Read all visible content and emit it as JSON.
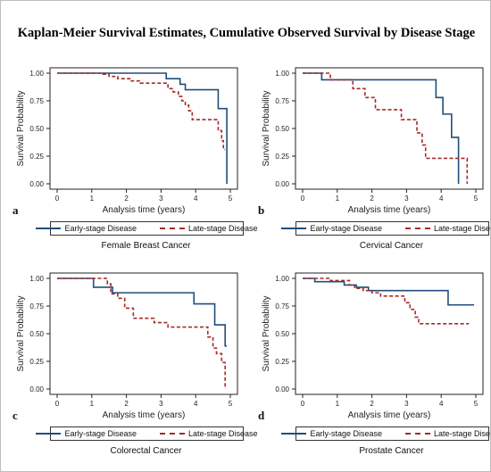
{
  "title": "Kaplan-Meier Survival Estimates,  Cumulative Observed Survival by Disease Stage",
  "colors": {
    "early": "#1f4e79",
    "late": "#a52a2a",
    "frame": "#222222"
  },
  "chart_data": [
    {
      "type": "line",
      "panel_letter": "a",
      "caption": "Female Breast Cancer",
      "xlabel": "Analysis time (years)",
      "ylabel": "Survival Probability",
      "xlim": [
        0,
        5
      ],
      "ylim": [
        0,
        1
      ],
      "xticks": [
        "0",
        "1",
        "2",
        "3",
        "4",
        "5"
      ],
      "yticks": [
        "0.00",
        "0.25",
        "0.50",
        "0.75",
        "1.00"
      ],
      "series": [
        {
          "name": "Early-stage Disease",
          "style": "solid",
          "x": [
            0,
            3.15,
            3.55,
            3.7,
            4.65,
            4.9
          ],
          "y": [
            1.0,
            0.95,
            0.9,
            0.85,
            0.68,
            0.0
          ],
          "end": 4.9
        },
        {
          "name": "Late-stage Disease",
          "style": "dashed",
          "x": [
            0,
            1.3,
            1.5,
            1.75,
            2.1,
            2.4,
            3.2,
            3.35,
            3.5,
            3.6,
            3.7,
            3.8,
            3.9,
            4.65,
            4.75,
            4.8
          ],
          "y": [
            1.0,
            0.99,
            0.97,
            0.95,
            0.93,
            0.91,
            0.86,
            0.83,
            0.79,
            0.75,
            0.71,
            0.66,
            0.58,
            0.48,
            0.39,
            0.31
          ],
          "end": 4.85
        }
      ]
    },
    {
      "type": "line",
      "panel_letter": "b",
      "caption": "Cervical Cancer",
      "xlabel": "Analysis time (years)",
      "ylabel": "Survival Probability",
      "xlim": [
        0,
        5
      ],
      "ylim": [
        0,
        1
      ],
      "xticks": [
        "0",
        "1",
        "2",
        "3",
        "4",
        "5"
      ],
      "yticks": [
        "0.00",
        "0.25",
        "0.50",
        "0.75",
        "1.00"
      ],
      "series": [
        {
          "name": "Early-stage Disease",
          "style": "solid",
          "x": [
            0,
            0.55,
            3.85,
            4.05,
            4.3,
            4.5
          ],
          "y": [
            1.0,
            0.94,
            0.78,
            0.63,
            0.42,
            0.0
          ],
          "end": 4.5
        },
        {
          "name": "Late-stage Disease",
          "style": "dashed",
          "x": [
            0,
            0.8,
            1.45,
            1.8,
            2.1,
            2.5,
            2.85,
            3.3,
            3.45,
            3.55,
            4.75
          ],
          "y": [
            1.0,
            0.94,
            0.86,
            0.78,
            0.67,
            0.67,
            0.58,
            0.46,
            0.35,
            0.23,
            0.0
          ],
          "end": 4.75
        }
      ]
    },
    {
      "type": "line",
      "panel_letter": "c",
      "caption": "Colorectal Cancer",
      "xlabel": "Analysis time (years)",
      "ylabel": "Survival Probability",
      "xlim": [
        0,
        5
      ],
      "ylim": [
        0,
        1
      ],
      "xticks": [
        "0",
        "1",
        "2",
        "3",
        "4",
        "5"
      ],
      "yticks": [
        "0.00",
        "0.25",
        "0.50",
        "0.75",
        "1.00"
      ],
      "series": [
        {
          "name": "Early-stage Disease",
          "style": "solid",
          "x": [
            0,
            1.05,
            1.6,
            3.95,
            4.55,
            4.85
          ],
          "y": [
            1.0,
            0.92,
            0.87,
            0.77,
            0.58,
            0.39
          ],
          "end": 4.9
        },
        {
          "name": "Late-stage Disease",
          "style": "dashed",
          "x": [
            0,
            1.45,
            1.55,
            1.75,
            1.95,
            2.2,
            2.8,
            3.2,
            4.35,
            4.5,
            4.6,
            4.75,
            4.85
          ],
          "y": [
            1.0,
            0.95,
            0.86,
            0.82,
            0.73,
            0.64,
            0.6,
            0.56,
            0.47,
            0.37,
            0.32,
            0.24,
            0.0
          ],
          "end": 4.85
        }
      ]
    },
    {
      "type": "line",
      "panel_letter": "d",
      "caption": "Prostate Cancer",
      "xlabel": "Analysis time (years)",
      "ylabel": "Survival Probability",
      "xlim": [
        0,
        5
      ],
      "ylim": [
        0,
        1
      ],
      "xticks": [
        "0",
        "1",
        "2",
        "3",
        "4",
        "5"
      ],
      "yticks": [
        "0.00",
        "0.25",
        "0.50",
        "0.75",
        "1.00"
      ],
      "series": [
        {
          "name": "Early-stage Disease",
          "style": "solid",
          "x": [
            0,
            0.35,
            1.2,
            1.55,
            1.9,
            4.2
          ],
          "y": [
            1.0,
            0.97,
            0.94,
            0.92,
            0.89,
            0.76
          ],
          "end": 4.95
        },
        {
          "name": "Late-stage Disease",
          "style": "dashed",
          "x": [
            0,
            0.8,
            1.35,
            1.5,
            1.75,
            2.0,
            2.25,
            2.95,
            3.1,
            3.25,
            3.35
          ],
          "y": [
            1.0,
            0.98,
            0.94,
            0.91,
            0.89,
            0.87,
            0.84,
            0.78,
            0.72,
            0.65,
            0.59
          ],
          "end": 4.8
        }
      ]
    }
  ]
}
